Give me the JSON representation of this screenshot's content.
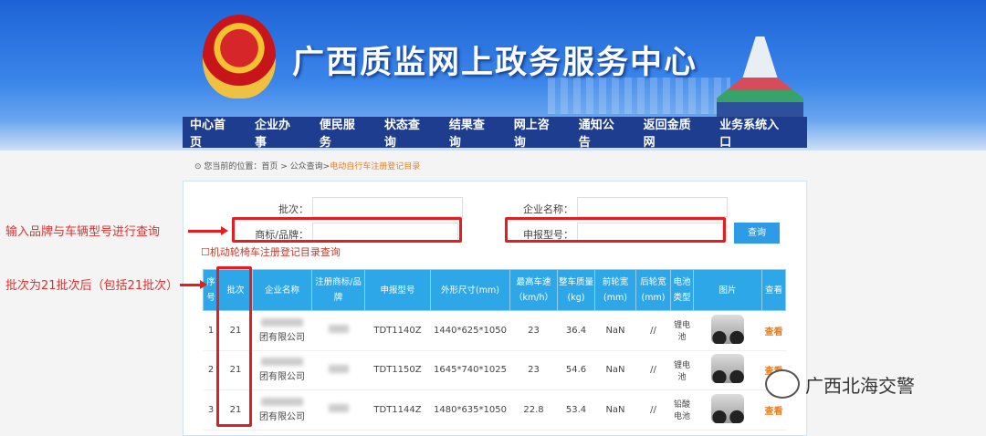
{
  "header": {
    "title": "广西质监网上政务服务中心"
  },
  "nav": [
    "中心首页",
    "企业办事",
    "便民服务",
    "状态查询",
    "结果查询",
    "网上咨询",
    "通知公告",
    "返回金质网",
    "业务系统入口"
  ],
  "breadcrumb": {
    "prefix": "您当前的位置：首页 > 公众查询>",
    "current": "电动自行车注册登记目录"
  },
  "form": {
    "batch": "批次：",
    "company": "企业名称：",
    "brand": "商标/品牌：",
    "model": "申报型号：",
    "query": "查询",
    "wheelchair_link": "机动轮椅车注册登记目录查询"
  },
  "table": {
    "headers": [
      "序号",
      "批次",
      "企业名称",
      "注册商标/品牌",
      "申报型号",
      "外形尺寸(mm)",
      "最高车速（km/h）",
      "整车质量(kg)",
      "前轮宽(mm)",
      "后轮宽(mm)",
      "电池类型",
      "图片",
      "查看"
    ],
    "rows": [
      {
        "no": "1",
        "batch": "21",
        "company": "团有限公司",
        "model": "TDT1140Z",
        "size": "1440*625*1050",
        "speed": "23",
        "weight": "36.4",
        "front": "NaN",
        "rear": "//",
        "battery": "锂电池",
        "view": "查看"
      },
      {
        "no": "2",
        "batch": "21",
        "company": "团有限公司",
        "model": "TDT1150Z",
        "size": "1645*740*1025",
        "speed": "23",
        "weight": "54.6",
        "front": "NaN",
        "rear": "//",
        "battery": "锂电池",
        "view": "查看"
      },
      {
        "no": "3",
        "batch": "21",
        "company": "团有限公司",
        "model": "TDT1144Z",
        "size": "1480*635*1050",
        "speed": "22.8",
        "weight": "53.4",
        "front": "NaN",
        "rear": "//",
        "battery": "铅酸电池",
        "view": "查看"
      }
    ]
  },
  "annotations": {
    "note1": "输入品牌与车辆型号进行查询",
    "note2": "批次为21批次后（包括21批次）"
  },
  "watermark": "广西北海交警"
}
